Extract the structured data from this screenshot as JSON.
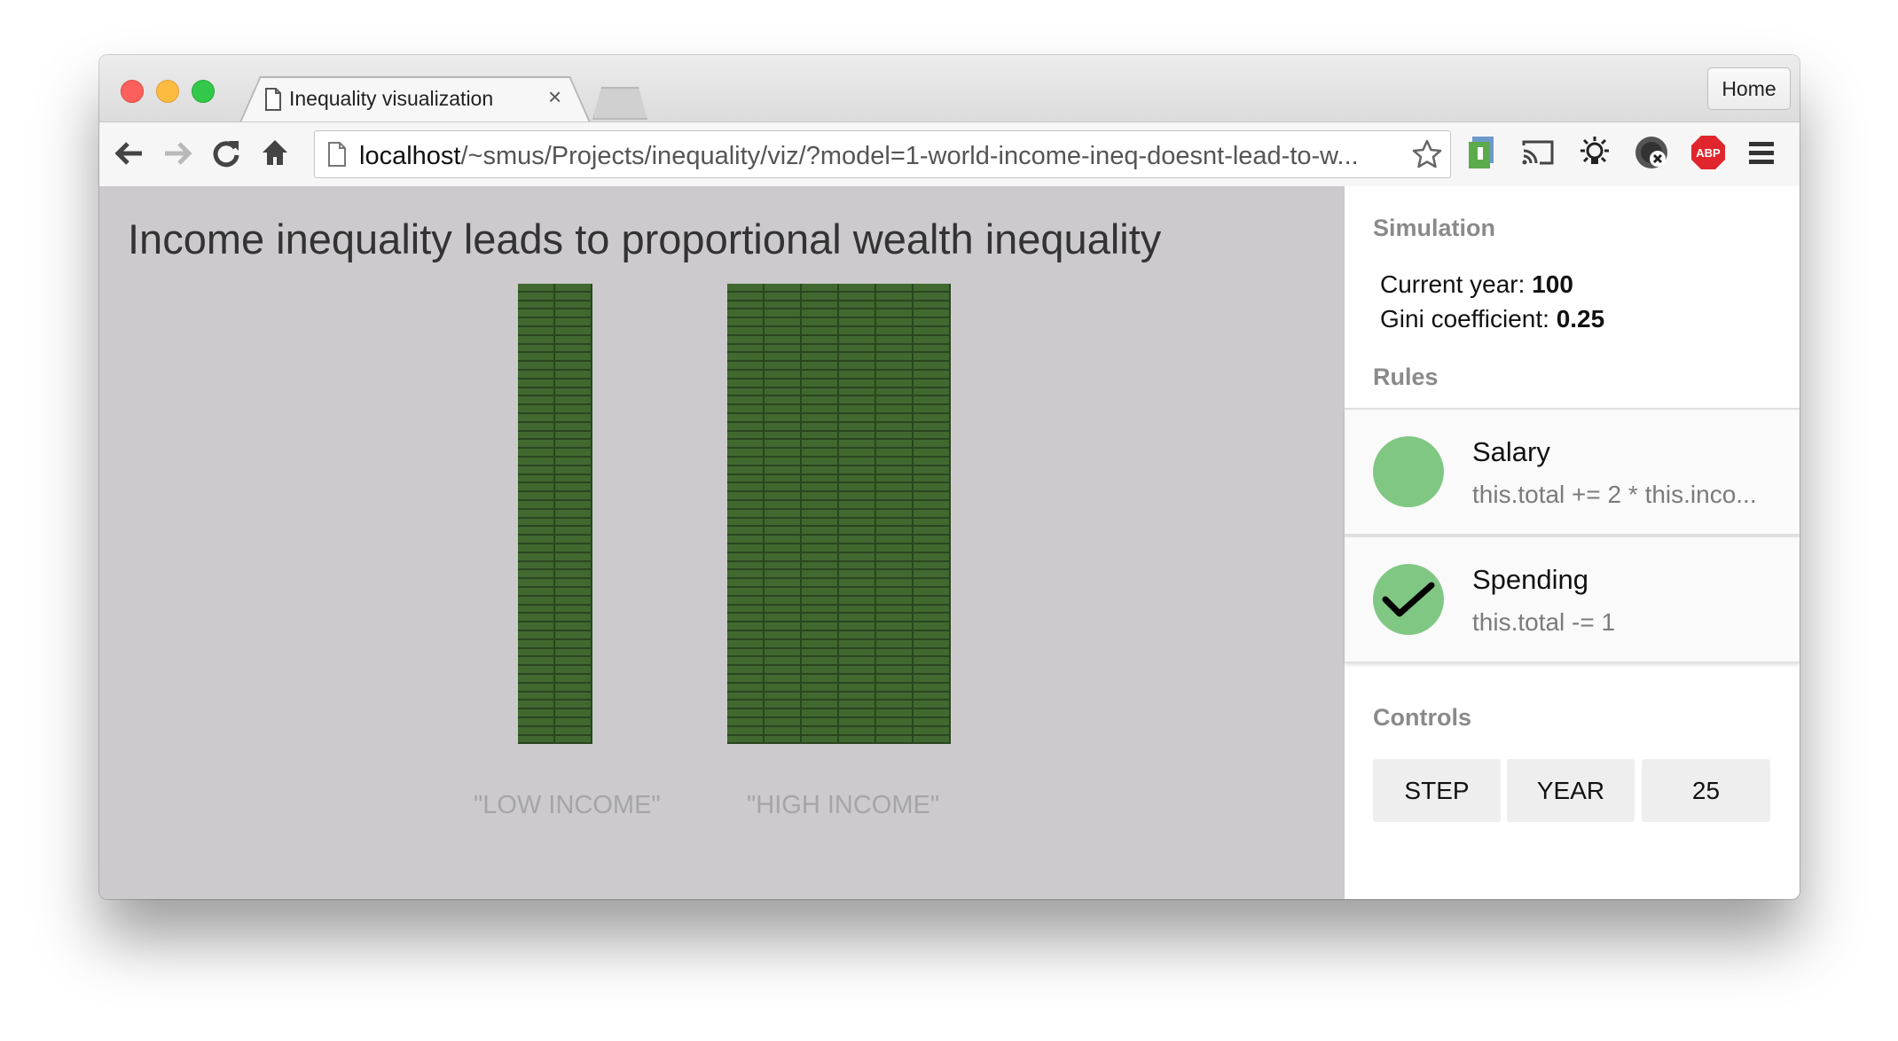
{
  "browser": {
    "tab_title": "Inequality visualization",
    "tab_close": "×",
    "home_label": "Home",
    "url_host": "localhost",
    "url_path": "/~smus/Projects/inequality/viz/?model=1-world-income-ineq-doesnt-lead-to-w..."
  },
  "viz": {
    "title": "Income inequality leads to proportional wealth inequality",
    "bar_color": "#41692f",
    "background": "#cccacd",
    "groups": [
      {
        "label": "\"LOW INCOME\"",
        "columns": 2,
        "rows": 53
      },
      {
        "label": "\"HIGH INCOME\"",
        "columns": 6,
        "rows": 53
      }
    ]
  },
  "sidebar": {
    "simulation_heading": "Simulation",
    "current_year_label": "Current year: ",
    "current_year_value": "100",
    "gini_label": "Gini coefficient: ",
    "gini_value": "0.25",
    "rules_heading": "Rules",
    "rules": [
      {
        "title": "Salary",
        "code": "this.total += 2 * this.inco...",
        "checked": false
      },
      {
        "title": "Spending",
        "code": "this.total -= 1",
        "checked": true
      }
    ],
    "rule_color": "#81c784",
    "controls_heading": "Controls",
    "controls": [
      "STEP",
      "YEAR",
      "25"
    ]
  }
}
